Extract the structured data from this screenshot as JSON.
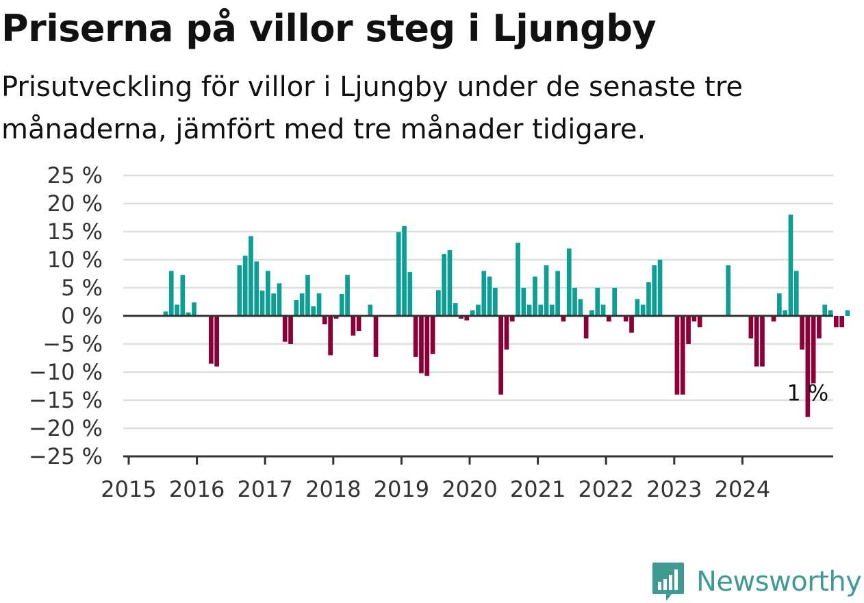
{
  "header": {
    "title": "Priserna på villor steg i Ljungby",
    "subtitle": "Prisutveckling för villor i Ljungby under de senaste tre månaderna, jämfört med tre månader tidigare."
  },
  "brand": {
    "name": "Newsworthy",
    "color": "#3f9a94",
    "icon": "newsworthy-logo-icon"
  },
  "chart_data": {
    "type": "bar",
    "title": "Priserna på villor steg i Ljungby",
    "subtitle": "Prisutveckling för villor i Ljungby under de senaste tre månaderna, jämfört med tre månader tidigare.",
    "xlabel": "",
    "ylabel": "",
    "ylim": [
      -25,
      25
    ],
    "yticks": [
      25,
      20,
      15,
      10,
      5,
      0,
      -5,
      -10,
      -15,
      -20,
      -25
    ],
    "ytick_labels": [
      "25 %",
      "20 %",
      "15 %",
      "10 %",
      "5 %",
      "0 %",
      "−5 %",
      "−10 %",
      "−15 %",
      "−20 %",
      "−25 %"
    ],
    "xtick_labels": [
      "2015",
      "2016",
      "2017",
      "2018",
      "2019",
      "2020",
      "2021",
      "2022",
      "2023",
      "2024"
    ],
    "grid": true,
    "colors": {
      "positive": "#0d9e96",
      "negative": "#8b0038",
      "grid": "#dddddd",
      "axis": "#333333"
    },
    "start_month": "2015-01",
    "values": [
      0,
      0,
      0,
      0,
      0,
      0,
      0.8,
      8,
      2,
      7.3,
      0.6,
      2.4,
      0,
      0,
      -8.5,
      -9,
      0,
      0,
      0,
      9,
      10.7,
      14.2,
      9.7,
      4.5,
      8,
      4,
      5.8,
      -4.6,
      -5,
      2.8,
      4,
      7.3,
      1.7,
      4,
      -1.5,
      -7,
      -0.5,
      3.9,
      7.3,
      -3.5,
      -2.7,
      0,
      2,
      -7.3,
      0,
      0,
      0,
      14.9,
      16,
      7.8,
      -7.3,
      -10.2,
      -10.7,
      -6.8,
      4.6,
      11,
      11.7,
      2.3,
      -0.5,
      -0.8,
      1,
      2,
      8,
      7,
      5,
      -14,
      -6,
      -1,
      13,
      5,
      2,
      7,
      2,
      9,
      2,
      8,
      -1,
      12,
      5,
      3,
      -4,
      1,
      5,
      2,
      -1,
      5,
      0,
      -1,
      -3,
      3,
      2,
      6,
      9,
      10,
      0,
      0,
      -14,
      -14,
      -5,
      -1,
      -2,
      0,
      0,
      0,
      0,
      9,
      0,
      0,
      0,
      -4,
      -9,
      -9,
      0,
      -1,
      4,
      1,
      18,
      8,
      -6,
      -18,
      -12,
      -4,
      2,
      1,
      -2,
      -2,
      1
    ],
    "annotation": {
      "text": "1 %",
      "index": 119
    }
  }
}
